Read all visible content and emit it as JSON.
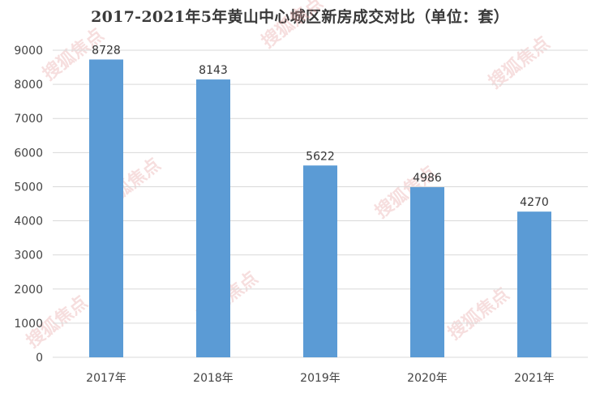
{
  "chart_data": {
    "type": "bar",
    "title": "2017-2021年5年黄山中心城区新房成交对比（单位：套）",
    "categories": [
      "2017年",
      "2018年",
      "2019年",
      "2020年",
      "2021年"
    ],
    "values": [
      8728,
      8143,
      5622,
      4986,
      4270
    ],
    "ylim": [
      0,
      9000
    ],
    "ytick_step": 1000,
    "grid": true,
    "bar_color": "#5b9bd5",
    "grid_color": "#d9d9d9",
    "data_labels": true
  },
  "watermark": {
    "text": "搜狐焦点",
    "color": "#e8a3a3"
  }
}
